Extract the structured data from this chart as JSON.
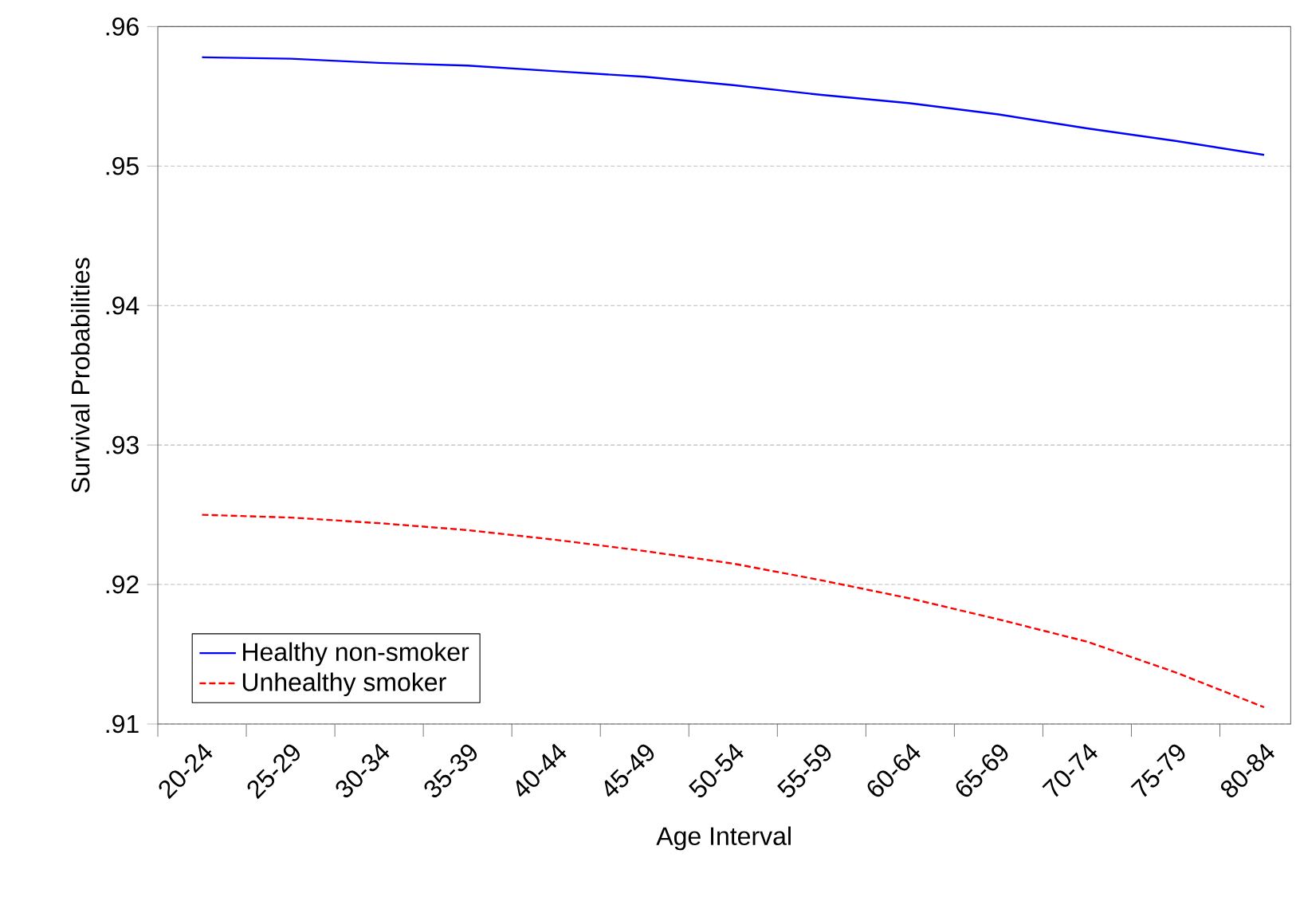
{
  "chart_data": {
    "type": "line",
    "xlabel": "Age Interval",
    "ylabel": "Survival Probabilities",
    "categories": [
      "20-24",
      "25-29",
      "30-34",
      "35-39",
      "40-44",
      "45-49",
      "50-54",
      "55-59",
      "60-64",
      "65-69",
      "70-74",
      "75-79",
      "80-84"
    ],
    "series": [
      {
        "name": "Healthy non-smoker",
        "color": "#0000ff",
        "line_style": "solid",
        "values": [
          0.9578,
          0.9577,
          0.9574,
          0.9572,
          0.9568,
          0.9564,
          0.9558,
          0.9551,
          0.9545,
          0.9537,
          0.9527,
          0.9518,
          0.9508
        ]
      },
      {
        "name": "Unhealthy smoker",
        "color": "#ff0000",
        "line_style": "dashed",
        "values": [
          0.925,
          0.9248,
          0.9244,
          0.9239,
          0.9232,
          0.9224,
          0.9215,
          0.9203,
          0.919,
          0.9175,
          0.9159,
          0.9137,
          0.9112
        ]
      }
    ],
    "ylim": [
      0.91,
      0.96
    ],
    "yticks": [
      {
        "value": 0.91,
        "label": ".91"
      },
      {
        "value": 0.92,
        "label": ".92"
      },
      {
        "value": 0.93,
        "label": ".93"
      },
      {
        "value": 0.94,
        "label": ".94"
      },
      {
        "value": 0.95,
        "label": ".95"
      },
      {
        "value": 0.96,
        "label": ".96"
      }
    ],
    "grid": "y",
    "legend": "bottom left",
    "marker": "none"
  }
}
